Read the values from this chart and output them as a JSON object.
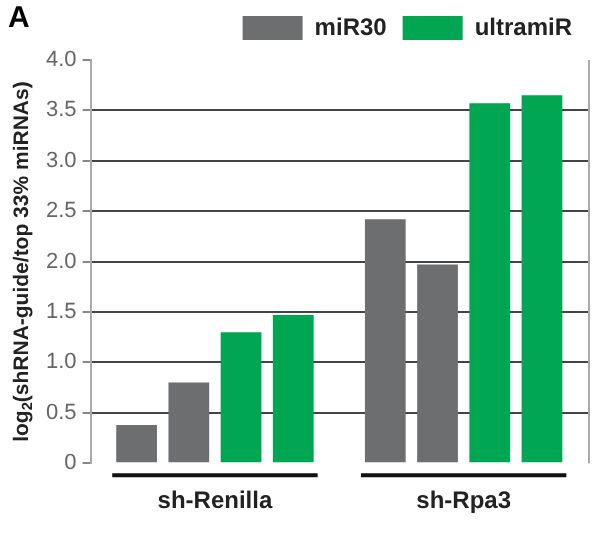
{
  "chart_data": {
    "type": "bar",
    "ylabel": "log$_{2}$(shRNA-guide/top 33% miRNAs)",
    "annotations": [
      "A"
    ],
    "categories": [
      "sh-Renilla",
      "sh-Rpa3"
    ],
    "series": [
      {
        "name": "miR30",
        "color": "#6d6e70",
        "values": [
          0.38,
          2.42
        ]
      },
      {
        "color": "#6d6e70",
        "values": [
          0.8,
          1.97
        ]
      },
      {
        "name": "ultramiR",
        "color": "#00a651",
        "values": [
          1.3,
          3.57
        ]
      },
      {
        "color": "#00a651",
        "values": [
          1.47,
          3.65
        ]
      }
    ],
    "ylim": [
      0,
      4
    ],
    "yticks": [
      0,
      {
        "value": 0.5,
        "label": "0.5"
      },
      {
        "value": 1,
        "label": "1.0"
      },
      {
        "value": 1.5,
        "label": "1.5"
      },
      {
        "value": 2,
        "label": "2.0"
      },
      {
        "value": 2.5,
        "label": "2.5"
      },
      {
        "value": 3,
        "label": "3.0"
      },
      {
        "value": 3.5,
        "label": "3.5"
      },
      {
        "value": 4,
        "label": "4.0"
      }
    ],
    "grid": "y",
    "legend": "top"
  }
}
